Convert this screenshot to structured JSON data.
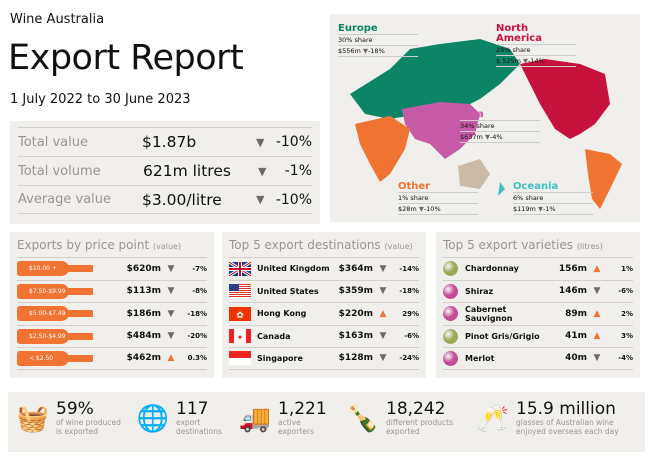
{
  "header": {
    "brand": "Wine Australia",
    "title": "Export Report",
    "period": "1 July 2022 to 30 June 2023"
  },
  "summary": [
    {
      "label": "Total value",
      "value": "$1.87b",
      "trend": "down",
      "change": "-10%"
    },
    {
      "label": "Total volume",
      "value": "621m litres",
      "trend": "down",
      "change": "-1%"
    },
    {
      "label": "Average value",
      "value": "$3.00/litre",
      "trend": "down",
      "change": "-10%"
    }
  ],
  "regions": [
    {
      "name": "Europe",
      "share": "30% share",
      "value": "$556m",
      "trend": "down",
      "change": "-18%",
      "color": "#0c8566"
    },
    {
      "name": "North America",
      "share": "28% share",
      "value": "$ 525m",
      "trend": "down",
      "change": "-14%",
      "color": "#c8123e"
    },
    {
      "name": "Asia",
      "share": "34% share",
      "value": "$637m",
      "trend": "down",
      "change": "-4%",
      "color": "#c75aa6"
    },
    {
      "name": "Other",
      "share": "1% share",
      "value": "$28m",
      "trend": "down",
      "change": "-10%",
      "color": "#f07332"
    },
    {
      "name": "Oceania",
      "share": "6% share",
      "value": "$119m",
      "trend": "down",
      "change": "-1%",
      "color": "#3fc0c0"
    }
  ],
  "price": {
    "title": "Exports by price point",
    "unit": "(value)",
    "rows": [
      {
        "label": "$10.00 +",
        "value": "$620m",
        "trend": "down",
        "change": "-7%"
      },
      {
        "label": "$7.50-$9.99",
        "value": "$113m",
        "trend": "down",
        "change": "-8%"
      },
      {
        "label": "$5.00-$7.49",
        "value": "$186m",
        "trend": "down",
        "change": "-18%"
      },
      {
        "label": "$2.50-$4.99",
        "value": "$484m",
        "trend": "down",
        "change": "-20%"
      },
      {
        "label": "< $2.50",
        "value": "$462m",
        "trend": "up",
        "change": "0.3%"
      }
    ]
  },
  "destinations": {
    "title": "Top 5 export destinations",
    "unit": "(value)",
    "rows": [
      {
        "flag": "uk",
        "name": "United Kingdom",
        "value": "$364m",
        "trend": "down",
        "change": "-14%"
      },
      {
        "flag": "us",
        "name": "United States",
        "value": "$359m",
        "trend": "down",
        "change": "-18%"
      },
      {
        "flag": "hk",
        "name": "Hong Kong",
        "value": "$220m",
        "trend": "up",
        "change": "29%"
      },
      {
        "flag": "ca",
        "name": "Canada",
        "value": "$163m",
        "trend": "down",
        "change": "-6%"
      },
      {
        "flag": "sg",
        "name": "Singapore",
        "value": "$128m",
        "trend": "down",
        "change": "-24%"
      }
    ]
  },
  "varieties": {
    "title": "Top 5 export varieties",
    "unit": "(litres)",
    "rows": [
      {
        "color": "#9aa958",
        "name": "Chardonnay",
        "value": "156m",
        "trend": "up",
        "change": "1%"
      },
      {
        "color": "#c44c97",
        "name": "Shiraz",
        "value": "146m",
        "trend": "down",
        "change": "-6%"
      },
      {
        "color": "#c44c97",
        "name": "Cabernet Sauvignon",
        "value": "89m",
        "trend": "up",
        "change": "2%"
      },
      {
        "color": "#9aa958",
        "name": "Pinot Gris/Grigio",
        "value": "41m",
        "trend": "up",
        "change": "3%"
      },
      {
        "color": "#c44c97",
        "name": "Merlot",
        "value": "40m",
        "trend": "down",
        "change": "-4%"
      }
    ]
  },
  "stats": [
    {
      "icon": "grape-barrel-icon",
      "value": "59%",
      "line1": "of wine produced",
      "line2": "is exported"
    },
    {
      "icon": "globe-icon",
      "value": "117",
      "line1": "export",
      "line2": "destinations"
    },
    {
      "icon": "truck-icon",
      "value": "1,221",
      "line1": "active",
      "line2": "exporters"
    },
    {
      "icon": "wine-bottles-icon",
      "value": "18,242",
      "line1": "different products",
      "line2": "exported"
    },
    {
      "icon": "wine-glasses-icon",
      "value": "15.9 million",
      "line1": "glasses of Australian wine",
      "line2": "enjoyed overseas each day"
    }
  ]
}
